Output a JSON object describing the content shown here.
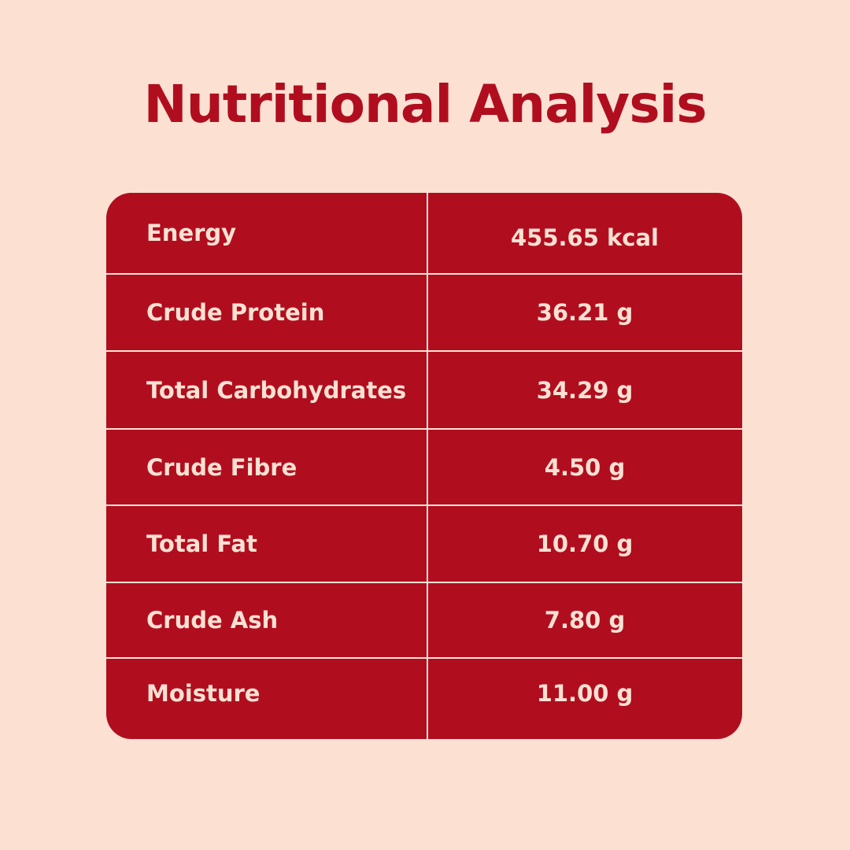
{
  "title": "Nutritional Analysis",
  "colors": {
    "background": "#fce1d3",
    "accent": "#b00e1f",
    "cell_text": "#fce1d3"
  },
  "rows": [
    {
      "label": "Energy",
      "value": "455.65 kcal"
    },
    {
      "label": "Crude Protein",
      "value": "36.21 g"
    },
    {
      "label": "Total Carbohydrates",
      "value": "34.29 g"
    },
    {
      "label": "Crude Fibre",
      "value": "4.50 g"
    },
    {
      "label": "Total Fat",
      "value": "10.70 g"
    },
    {
      "label": "Crude Ash",
      "value": "7.80 g"
    },
    {
      "label": "Moisture",
      "value": "11.00 g"
    }
  ]
}
